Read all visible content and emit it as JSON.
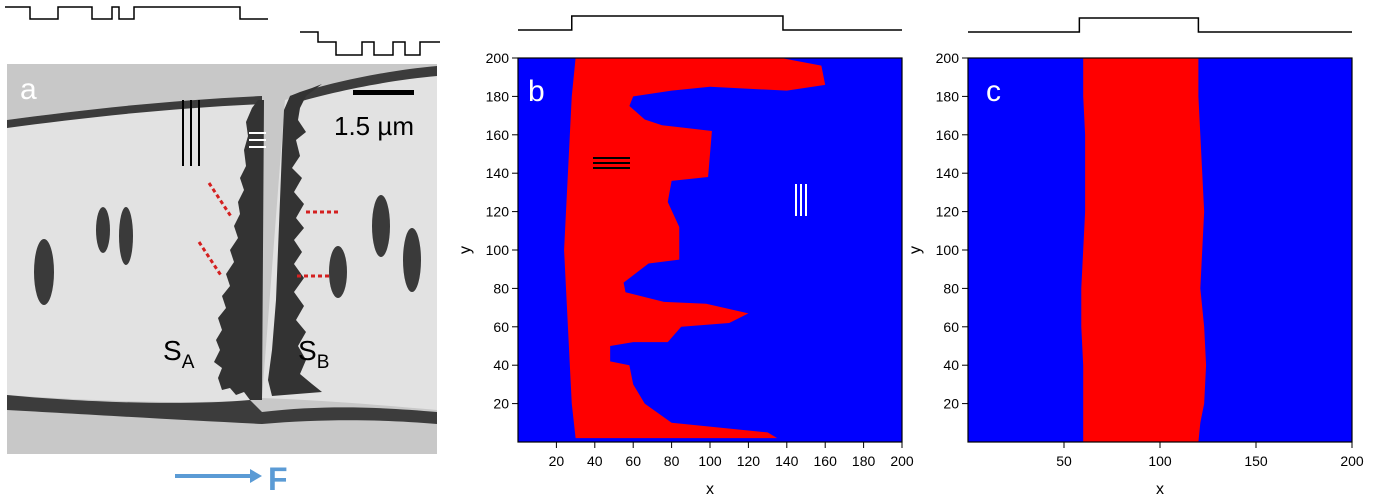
{
  "panel_a": {
    "letter": "a",
    "scale_label": "1.5 µm",
    "label_sa_main": "S",
    "label_sa_sub": "A",
    "label_sb_main": "S",
    "label_sb_sub": "B",
    "force_label": "F",
    "colors": {
      "background": "#c9c9c9",
      "dark": "#3b3b3b",
      "line": "#d42020",
      "arrow": "#5b9bd5"
    }
  },
  "chart_data": [
    {
      "type": "heatmap",
      "panel": "b",
      "title": "",
      "xlabel": "x",
      "ylabel": "y",
      "xlim": [
        0,
        200
      ],
      "ylim": [
        0,
        200
      ],
      "xticks": [
        20,
        40,
        60,
        80,
        100,
        120,
        140,
        160,
        180,
        200
      ],
      "yticks": [
        20,
        40,
        60,
        80,
        100,
        120,
        140,
        160,
        180,
        200
      ],
      "colors": {
        "outside": "#0000ff",
        "inside": "#ff0000"
      },
      "left_boundary": {
        "x": [
          30,
          28,
          27,
          26,
          25,
          24,
          25,
          26,
          27,
          28,
          30
        ],
        "y": [
          200,
          180,
          160,
          140,
          120,
          100,
          80,
          60,
          40,
          20,
          2
        ]
      },
      "right_boundary": {
        "x": [
          137,
          158,
          160,
          140,
          100,
          80,
          60,
          58,
          66,
          75,
          101,
          99,
          80,
          78,
          84,
          84,
          68,
          55,
          56,
          76,
          98,
          120,
          110,
          85,
          78,
          60,
          48,
          48,
          58,
          60,
          66,
          80,
          130,
          135
        ],
        "y": [
          200,
          196,
          186,
          183,
          185,
          183,
          180,
          175,
          168,
          165,
          162,
          138,
          136,
          125,
          112,
          95,
          93,
          83,
          78,
          73,
          72,
          67,
          62,
          60,
          52,
          52,
          50,
          42,
          40,
          30,
          20,
          10,
          5,
          2
        ]
      },
      "profile": {
        "x": [
          0,
          28,
          28,
          138,
          138,
          200
        ],
        "level": [
          0,
          0,
          1,
          1,
          0,
          0
        ]
      }
    },
    {
      "type": "heatmap",
      "panel": "c",
      "title": "",
      "xlabel": "x",
      "ylabel": "y",
      "xlim": [
        0,
        200
      ],
      "ylim": [
        0,
        200
      ],
      "xticks": [
        50,
        100,
        150,
        200
      ],
      "yticks": [
        20,
        40,
        60,
        80,
        100,
        120,
        140,
        160,
        180,
        200
      ],
      "colors": {
        "outside": "#0000ff",
        "inside": "#ff0000"
      },
      "left_boundary": {
        "x": [
          60,
          60,
          61,
          61,
          61,
          60,
          59,
          59,
          60,
          60
        ],
        "y": [
          200,
          180,
          160,
          140,
          120,
          100,
          80,
          60,
          40,
          0
        ]
      },
      "right_boundary": {
        "x": [
          120,
          120,
          121,
          122,
          123,
          122,
          121,
          123,
          124,
          123,
          121,
          120
        ],
        "y": [
          200,
          180,
          160,
          140,
          120,
          100,
          80,
          60,
          40,
          20,
          10,
          0
        ]
      },
      "profile": {
        "x": [
          0,
          58,
          58,
          120,
          120,
          200
        ],
        "level": [
          0,
          0,
          1,
          1,
          0,
          0
        ]
      }
    }
  ]
}
